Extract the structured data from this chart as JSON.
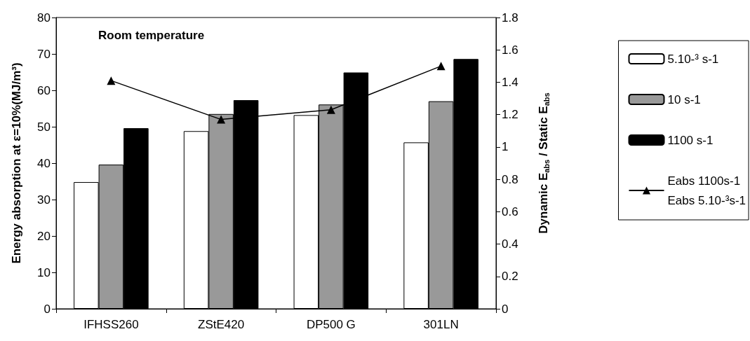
{
  "chart_data": {
    "type": "bar",
    "categories": [
      "IFHSS260",
      "ZStE420",
      "DP500 G",
      "301LN"
    ],
    "ylabel": "Energy absorption at ε=10%(MJ/m³)",
    "y2label": "Dynamic E$_{abs}$ / Static E$_{abs}$",
    "annotations": [
      "Room temperature"
    ],
    "series": [
      {
        "name": "5.10-³ s-1",
        "color": "#ffffff",
        "values": [
          34.8,
          48.8,
          53.2,
          45.7
        ]
      },
      {
        "name": "10 s-1",
        "color": "#999999",
        "values": [
          39.6,
          53.5,
          56.1,
          57.0
        ]
      },
      {
        "name": "1100 s-1",
        "color": "#000000",
        "values": [
          49.6,
          57.3,
          64.9,
          68.6
        ]
      },
      {
        "name": "Eabs 1100s-1\nEabs 5.10-³s-1",
        "type": "line",
        "axis": "y2",
        "color": "#000000",
        "marker": "triangle",
        "values": [
          1.41,
          1.17,
          1.23,
          1.5
        ]
      }
    ],
    "ylim": [
      0,
      80
    ],
    "yticks": [
      0,
      10,
      20,
      30,
      40,
      50,
      60,
      70,
      80
    ],
    "y2lim": [
      0,
      1.8
    ],
    "y2ticks": [
      0,
      0.2,
      0.4,
      0.6,
      0.8,
      1,
      1.2,
      1.4,
      1.6,
      1.8
    ],
    "legend": "right",
    "grid": false
  }
}
